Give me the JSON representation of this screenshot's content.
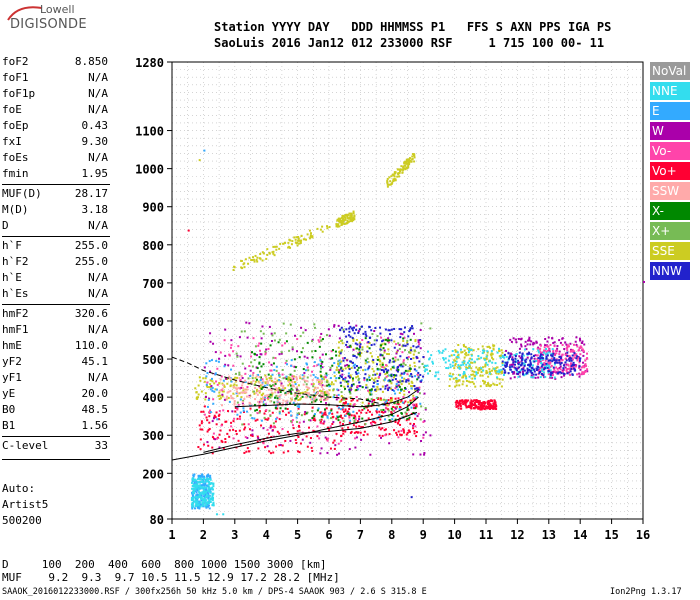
{
  "logo": {
    "line1": "Lowell",
    "line2": "DIGISONDE"
  },
  "header": {
    "row1": "Station YYYY DAY   DDD HHMMSS P1   FFS S AXN PPS IGA PS",
    "row2": "SaoLuis 2016 Jan12 012 233000 RSF     1 715 100 00- 11"
  },
  "params": [
    {
      "label": "foF2",
      "value": "8.850"
    },
    {
      "label": "foF1",
      "value": "N/A"
    },
    {
      "label": "foF1p",
      "value": "N/A"
    },
    {
      "label": "foE",
      "value": "N/A"
    },
    {
      "label": "foEp",
      "value": "0.43"
    },
    {
      "label": "fxI",
      "value": "9.30"
    },
    {
      "label": "foEs",
      "value": "N/A"
    },
    {
      "label": "fmin",
      "value": "1.95"
    },
    {
      "label": "MUF(D)",
      "value": "28.17"
    },
    {
      "label": "M(D)",
      "value": "3.18"
    },
    {
      "label": "D",
      "value": "N/A"
    },
    {
      "label": "h`F",
      "value": "255.0"
    },
    {
      "label": "h`F2",
      "value": "255.0"
    },
    {
      "label": "h`E",
      "value": "N/A"
    },
    {
      "label": "h`Es",
      "value": "N/A"
    },
    {
      "label": "hmF2",
      "value": "320.6"
    },
    {
      "label": "hmF1",
      "value": "N/A"
    },
    {
      "label": "hmE",
      "value": "110.0"
    },
    {
      "label": "yF2",
      "value": "45.1"
    },
    {
      "label": "yF1",
      "value": "N/A"
    },
    {
      "label": "yE",
      "value": "20.0"
    },
    {
      "label": "B0",
      "value": "48.5"
    },
    {
      "label": "B1",
      "value": "1.56"
    },
    {
      "label": "C-level",
      "value": "33"
    }
  ],
  "auto": [
    "Auto:",
    "Artist5",
    "500200"
  ],
  "legend": [
    {
      "label": "NoVal",
      "color": "#9a9a9a"
    },
    {
      "label": "NNE",
      "color": "#33ddee"
    },
    {
      "label": "E",
      "color": "#33aaff"
    },
    {
      "label": "W",
      "color": "#aa00aa"
    },
    {
      "label": "Vo-",
      "color": "#ff44aa"
    },
    {
      "label": "Vo+",
      "color": "#ff0033"
    },
    {
      "label": "SSW",
      "color": "#ffaaaa"
    },
    {
      "label": "X-",
      "color": "#008800"
    },
    {
      "label": "X+",
      "color": "#77bb55"
    },
    {
      "label": "SSE",
      "color": "#cccc22"
    },
    {
      "label": "NNW",
      "color": "#2222cc"
    }
  ],
  "mufTable": {
    "dRow": "D     100  200  400  600  800 1000 1500 3000 [km]",
    "mufRow": "MUF    9.2  9.3  9.7 10.5 11.5 12.9 17.2 28.2 [MHz]"
  },
  "footer": "SAAOK_2016012233000.RSF / 300fx256h 50 kHz 5.0 km / DPS-4 SAAOK 903 / 2.6 S 315.8 E",
  "version": "Ion2Png 1.3.17",
  "chart_data": {
    "type": "scatter",
    "xlim": [
      1,
      16
    ],
    "ylim": [
      80,
      1280
    ],
    "xticks": [
      1,
      2,
      3,
      4,
      5,
      6,
      7,
      8,
      9,
      10,
      11,
      12,
      13,
      14,
      15,
      16
    ],
    "yticks": [
      80,
      200,
      300,
      400,
      500,
      600,
      700,
      800,
      900,
      1000,
      1100,
      1280
    ],
    "grid": true,
    "series": [
      {
        "name": "SSE",
        "color": "#cccc22",
        "clusters": [
          {
            "x": [
              2.9,
              6.0
            ],
            "y": [
              740,
              850
            ],
            "trend": true
          },
          {
            "x": [
              7.8,
              8.7
            ],
            "y": [
              960,
              1035
            ],
            "trend": true
          },
          {
            "x": [
              6.2,
              6.8
            ],
            "y": [
              860,
              880
            ],
            "trend": true
          },
          {
            "x": [
              1.7,
              6.2
            ],
            "y": [
              395,
              460
            ]
          },
          {
            "x": [
              6.2,
              8.8
            ],
            "y": [
              380,
              560
            ]
          },
          {
            "x": [
              9.8,
              11.5
            ],
            "y": [
              430,
              540
            ]
          }
        ]
      },
      {
        "name": "Vo+",
        "color": "#ff0033",
        "clusters": [
          {
            "x": [
              1.8,
              6.2
            ],
            "y": [
              255,
              380
            ]
          },
          {
            "x": [
              6.2,
              8.8
            ],
            "y": [
              300,
              400
            ]
          },
          {
            "x": [
              10.0,
              11.3
            ],
            "y": [
              370,
              395
            ]
          }
        ]
      },
      {
        "name": "W",
        "color": "#aa00aa",
        "clusters": [
          {
            "x": [
              2.0,
              9.2
            ],
            "y": [
              250,
              600
            ]
          },
          {
            "x": [
              11.6,
              14.2
            ],
            "y": [
              450,
              560
            ]
          }
        ]
      },
      {
        "name": "Vo-",
        "color": "#ff44aa",
        "clusters": [
          {
            "x": [
              2.0,
              9.0
            ],
            "y": [
              280,
              560
            ]
          },
          {
            "x": [
              12.6,
              14.2
            ],
            "y": [
              460,
              540
            ]
          }
        ]
      },
      {
        "name": "X+",
        "color": "#77bb55",
        "clusters": [
          {
            "x": [
              3.0,
              9.2
            ],
            "y": [
              330,
              600
            ]
          }
        ]
      },
      {
        "name": "E",
        "color": "#33aaff",
        "clusters": [
          {
            "x": [
              1.6,
              2.2
            ],
            "y": [
              110,
              200
            ]
          },
          {
            "x": [
              2.0,
              9.0
            ],
            "y": [
              340,
              500
            ]
          }
        ]
      },
      {
        "name": "NNE",
        "color": "#33ddee",
        "clusters": [
          {
            "x": [
              1.6,
              2.3
            ],
            "y": [
              115,
              190
            ]
          },
          {
            "x": [
              9.0,
              13.2
            ],
            "y": [
              450,
              530
            ]
          }
        ]
      },
      {
        "name": "NNW",
        "color": "#2222cc",
        "clusters": [
          {
            "x": [
              6.3,
              9.0
            ],
            "y": [
              420,
              590
            ]
          },
          {
            "x": [
              11.5,
              14.0
            ],
            "y": [
              460,
              520
            ]
          }
        ]
      },
      {
        "name": "X-",
        "color": "#008800",
        "clusters": [
          {
            "x": [
              3.5,
              8.8
            ],
            "y": [
              340,
              560
            ]
          }
        ]
      },
      {
        "name": "SSW",
        "color": "#ffaaaa",
        "clusters": [
          {
            "x": [
              2.5,
              6.0
            ],
            "y": [
              380,
              460
            ]
          }
        ]
      }
    ],
    "isolated_points": [
      {
        "x": 1.5,
        "y": 840,
        "color": "#ff0033"
      },
      {
        "x": 2.0,
        "y": 1050,
        "color": "#33aaff"
      },
      {
        "x": 1.85,
        "y": 1025,
        "color": "#cccc22"
      },
      {
        "x": 16.0,
        "y": 705,
        "color": "#aa00aa"
      },
      {
        "x": 8.6,
        "y": 140,
        "color": "#2222cc"
      },
      {
        "x": 2.4,
        "y": 95,
        "color": "#33ddee"
      },
      {
        "x": 2.6,
        "y": 95,
        "color": "#33ddee"
      }
    ],
    "profile_curves": [
      {
        "style": "solid",
        "x": [
          1.0,
          2.0,
          3.0,
          4.0,
          5.0,
          6.0,
          7.0,
          8.0,
          8.5,
          8.85
        ],
        "y": [
          235,
          250,
          268,
          285,
          300,
          318,
          335,
          355,
          375,
          400
        ]
      },
      {
        "style": "solid",
        "x": [
          2.0,
          3.0,
          4.0,
          5.0,
          6.0,
          7.0,
          8.0,
          8.8
        ],
        "y": [
          255,
          275,
          292,
          305,
          310,
          318,
          335,
          360
        ]
      },
      {
        "style": "solid",
        "x": [
          3.0,
          4.0,
          5.0,
          6.0,
          7.0,
          7.5,
          8.0,
          8.5,
          8.85
        ],
        "y": [
          375,
          378,
          382,
          380,
          375,
          378,
          385,
          400,
          420
        ]
      },
      {
        "style": "dashed",
        "x": [
          1.0,
          1.5,
          2.0,
          3.0,
          4.0,
          5.0,
          6.0,
          7.0,
          7.8
        ],
        "y": [
          505,
          490,
          470,
          445,
          425,
          410,
          400,
          395,
          380
        ]
      }
    ]
  }
}
